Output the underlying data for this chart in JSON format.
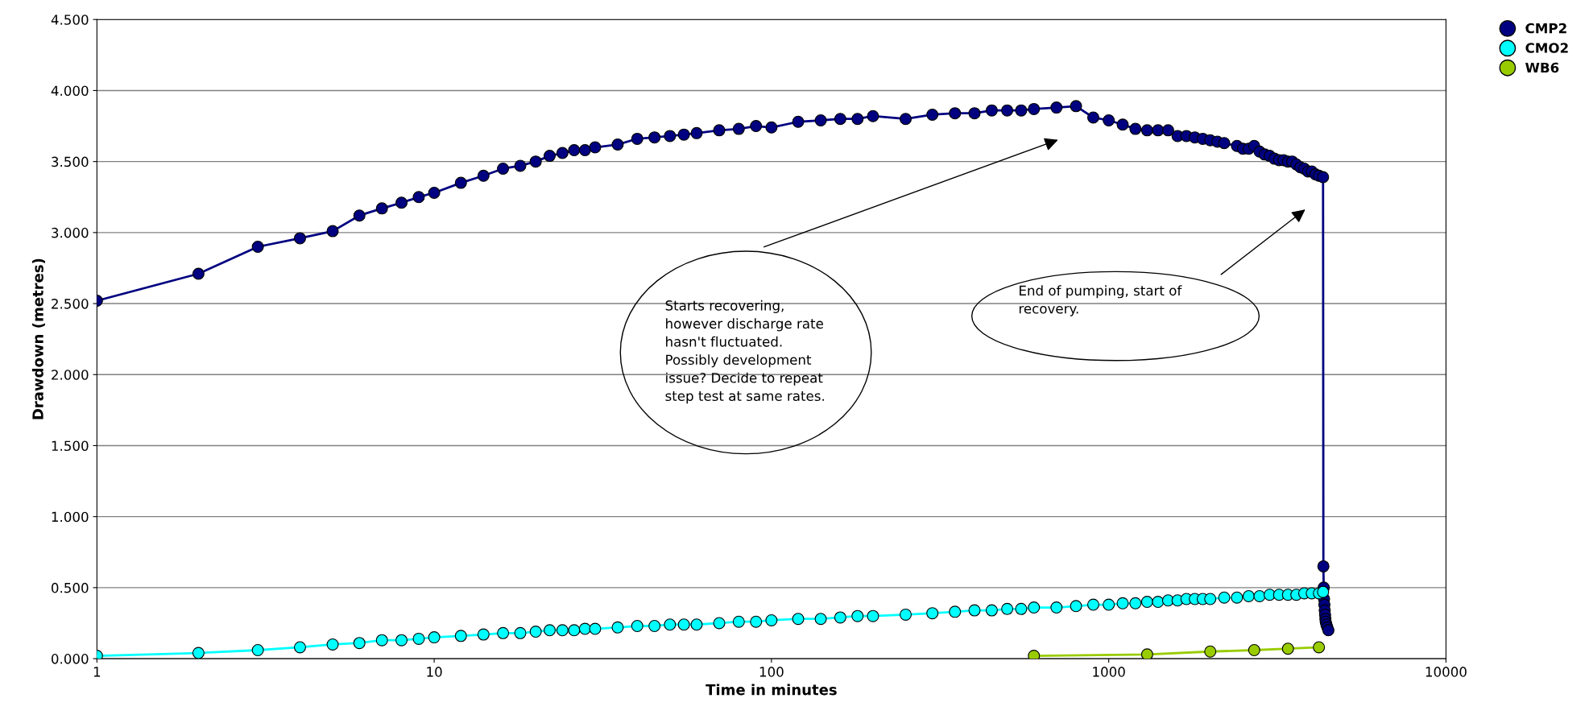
{
  "chart_data": {
    "type": "line",
    "xlabel": "Time in minutes",
    "ylabel": "Drawdown (metres)",
    "log": "x",
    "xlim": [
      1,
      10000
    ],
    "xticks": [
      1,
      10,
      100,
      1000,
      10000
    ],
    "ylim": [
      0,
      4.5
    ],
    "yticks": [
      {
        "value": 0,
        "label": "0.000"
      },
      {
        "value": 0.5,
        "label": "0.500"
      },
      {
        "value": 1,
        "label": "1.000"
      },
      {
        "value": 1.5,
        "label": "1.500"
      },
      {
        "value": 2,
        "label": "2.000"
      },
      {
        "value": 2.5,
        "label": "2.500"
      },
      {
        "value": 3,
        "label": "3.000"
      },
      {
        "value": 3.5,
        "label": "3.500"
      },
      {
        "value": 4,
        "label": "4.000"
      },
      {
        "value": 4.5,
        "label": "4.500"
      }
    ],
    "grid": "y",
    "legend": "top right",
    "marker": "circle",
    "line_style": "solid",
    "series": [
      {
        "name": "CMP2",
        "color": "#000080",
        "x": [
          1,
          2,
          3,
          4,
          5,
          6,
          7,
          8,
          9,
          10,
          12,
          14,
          16,
          18,
          20,
          22,
          24,
          26,
          28,
          30,
          35,
          40,
          45,
          50,
          55,
          60,
          70,
          80,
          90,
          100,
          120,
          140,
          160,
          180,
          200,
          250,
          300,
          350,
          400,
          450,
          500,
          550,
          600,
          700,
          800,
          900,
          1000,
          1100,
          1200,
          1300,
          1400,
          1500,
          1600,
          1700,
          1800,
          1900,
          2000,
          2100,
          2200,
          2400,
          2500,
          2600,
          2700,
          2800,
          2900,
          3000,
          3100,
          3200,
          3300,
          3400,
          3500,
          3600,
          3700,
          3800,
          3900,
          4000,
          4100,
          4200,
          4320,
          4330,
          4340,
          4350,
          4360,
          4370,
          4380,
          4390,
          4400,
          4420,
          4450,
          4480
        ],
        "values": [
          2.52,
          2.71,
          2.9,
          2.96,
          3.01,
          3.12,
          3.17,
          3.21,
          3.25,
          3.28,
          3.35,
          3.4,
          3.45,
          3.47,
          3.5,
          3.54,
          3.56,
          3.58,
          3.58,
          3.6,
          3.62,
          3.66,
          3.67,
          3.68,
          3.69,
          3.7,
          3.72,
          3.73,
          3.75,
          3.74,
          3.78,
          3.79,
          3.8,
          3.8,
          3.82,
          3.8,
          3.83,
          3.84,
          3.84,
          3.86,
          3.86,
          3.86,
          3.87,
          3.88,
          3.89,
          3.81,
          3.79,
          3.76,
          3.73,
          3.72,
          3.72,
          3.72,
          3.68,
          3.68,
          3.67,
          3.66,
          3.65,
          3.64,
          3.63,
          3.61,
          3.59,
          3.59,
          3.61,
          3.57,
          3.55,
          3.54,
          3.52,
          3.51,
          3.51,
          3.5,
          3.5,
          3.48,
          3.46,
          3.45,
          3.43,
          3.43,
          3.41,
          3.4,
          3.39,
          0.65,
          0.5,
          0.42,
          0.38,
          0.34,
          0.31,
          0.28,
          0.26,
          0.24,
          0.22,
          0.2
        ]
      },
      {
        "name": "CMO2",
        "color": "#00ffff",
        "x": [
          1,
          2,
          3,
          4,
          5,
          6,
          7,
          8,
          9,
          10,
          12,
          14,
          16,
          18,
          20,
          22,
          24,
          26,
          28,
          30,
          35,
          40,
          45,
          50,
          55,
          60,
          70,
          80,
          90,
          100,
          120,
          140,
          160,
          180,
          200,
          250,
          300,
          350,
          400,
          450,
          500,
          550,
          600,
          700,
          800,
          900,
          1000,
          1100,
          1200,
          1300,
          1400,
          1500,
          1600,
          1700,
          1800,
          1900,
          2000,
          2200,
          2400,
          2600,
          2800,
          3000,
          3200,
          3400,
          3600,
          3800,
          4000,
          4200,
          4320
        ],
        "values": [
          0.02,
          0.04,
          0.06,
          0.08,
          0.1,
          0.11,
          0.13,
          0.13,
          0.14,
          0.15,
          0.16,
          0.17,
          0.18,
          0.18,
          0.19,
          0.2,
          0.2,
          0.2,
          0.21,
          0.21,
          0.22,
          0.23,
          0.23,
          0.24,
          0.24,
          0.24,
          0.25,
          0.26,
          0.26,
          0.27,
          0.28,
          0.28,
          0.29,
          0.3,
          0.3,
          0.31,
          0.32,
          0.33,
          0.34,
          0.34,
          0.35,
          0.35,
          0.36,
          0.36,
          0.37,
          0.38,
          0.38,
          0.39,
          0.39,
          0.4,
          0.4,
          0.41,
          0.41,
          0.42,
          0.42,
          0.42,
          0.42,
          0.43,
          0.43,
          0.44,
          0.44,
          0.45,
          0.45,
          0.45,
          0.45,
          0.46,
          0.46,
          0.46,
          0.47
        ]
      },
      {
        "name": "WB6",
        "color": "#99cc00",
        "x": [
          600,
          1300,
          2000,
          2700,
          3400,
          4200
        ],
        "values": [
          0.02,
          0.03,
          0.05,
          0.06,
          0.07,
          0.08
        ]
      }
    ],
    "annotations": [
      "Starts recovering,\nhowever discharge rate\nhasn't fluctuated.\nPossibly development\nissue? Decide to repeat\nstep test at same rates.",
      "End of pumping, start of\nrecovery."
    ]
  }
}
